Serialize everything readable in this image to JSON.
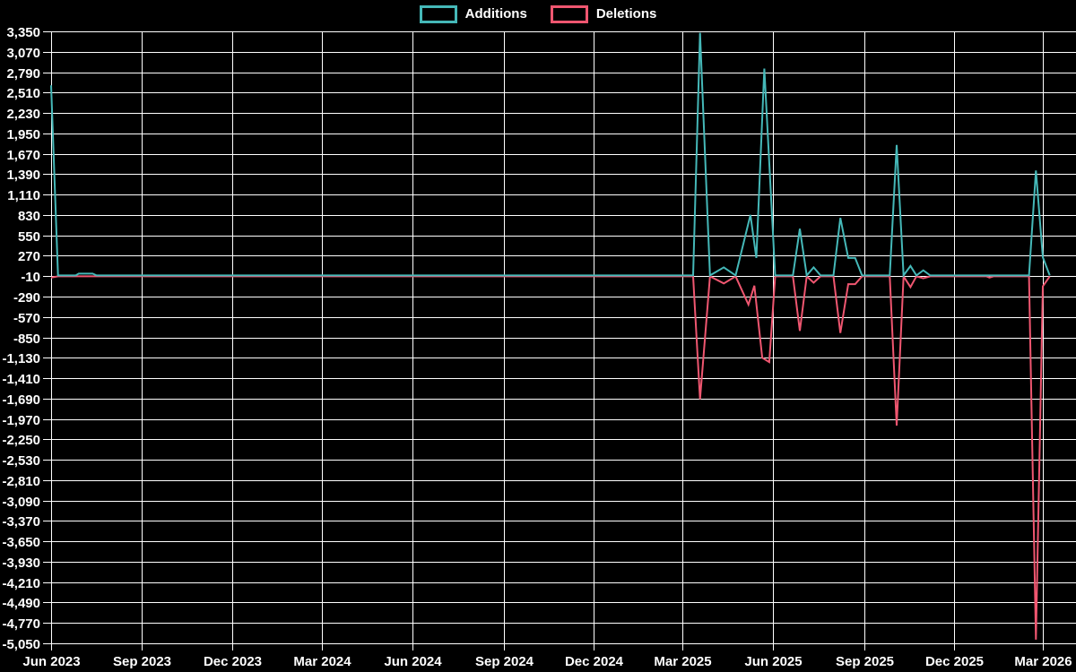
{
  "legend": {
    "items": [
      {
        "label": "Additions",
        "color": "#45b8b8"
      },
      {
        "label": "Deletions",
        "color": "#ef5670"
      }
    ]
  },
  "chart_data": {
    "type": "line",
    "title": "",
    "background_color": "#000000",
    "grid_color": "#ffffff",
    "text_color": "#ffffff",
    "grid": true,
    "legend_position": "top-center",
    "x_axis": {
      "start_date": "2023-06-01",
      "end_date": "2026-03-01",
      "ticks": [
        {
          "label": "Jun 2023",
          "date": "2023-06-01"
        },
        {
          "label": "Sep 2023",
          "date": "2023-09-01"
        },
        {
          "label": "Dec 2023",
          "date": "2023-12-01"
        },
        {
          "label": "Mar 2024",
          "date": "2024-03-01"
        },
        {
          "label": "Jun 2024",
          "date": "2024-06-01"
        },
        {
          "label": "Sep 2024",
          "date": "2024-09-01"
        },
        {
          "label": "Dec 2024",
          "date": "2024-12-01"
        },
        {
          "label": "Mar 2025",
          "date": "2025-03-01"
        },
        {
          "label": "Jun 2025",
          "date": "2025-06-01"
        },
        {
          "label": "Sep 2025",
          "date": "2025-09-01"
        },
        {
          "label": "Dec 2025",
          "date": "2025-12-01"
        },
        {
          "label": "Mar 2026",
          "date": "2026-03-01"
        }
      ]
    },
    "y_axis": {
      "min": -5050,
      "max": 3350,
      "tick_step": 280,
      "tick_labels": [
        "3,350",
        "3,070",
        "2,790",
        "2,510",
        "2,230",
        "1,950",
        "1,670",
        "1,390",
        "1,110",
        "830",
        "550",
        "270",
        "-10",
        "-290",
        "-570",
        "-850",
        "-1,130",
        "-1,410",
        "-1,690",
        "-1,970",
        "-2,250",
        "-2,530",
        "-2,810",
        "-3,090",
        "-3,370",
        "-3,650",
        "-3,930",
        "-4,210",
        "-4,490",
        "-4,770",
        "-5,050"
      ]
    },
    "series": [
      {
        "name": "Additions",
        "color": "#45b8b8",
        "points": [
          [
            "2023-06-01",
            2610
          ],
          [
            "2023-06-08",
            0
          ],
          [
            "2023-06-26",
            0
          ],
          [
            "2023-06-29",
            25
          ],
          [
            "2023-07-13",
            25
          ],
          [
            "2023-07-17",
            0
          ],
          [
            "2025-03-12",
            0
          ],
          [
            "2025-03-19",
            3330
          ],
          [
            "2025-03-29",
            0
          ],
          [
            "2025-04-12",
            110
          ],
          [
            "2025-04-24",
            0
          ],
          [
            "2025-05-09",
            830
          ],
          [
            "2025-05-15",
            240
          ],
          [
            "2025-05-23",
            2840
          ],
          [
            "2025-06-03",
            0
          ],
          [
            "2025-06-21",
            0
          ],
          [
            "2025-06-28",
            640
          ],
          [
            "2025-07-05",
            0
          ],
          [
            "2025-07-12",
            110
          ],
          [
            "2025-07-19",
            0
          ],
          [
            "2025-08-01",
            0
          ],
          [
            "2025-08-08",
            790
          ],
          [
            "2025-08-16",
            240
          ],
          [
            "2025-08-23",
            240
          ],
          [
            "2025-08-30",
            0
          ],
          [
            "2025-09-27",
            0
          ],
          [
            "2025-10-04",
            1790
          ],
          [
            "2025-10-11",
            0
          ],
          [
            "2025-10-18",
            130
          ],
          [
            "2025-10-24",
            0
          ],
          [
            "2025-10-31",
            70
          ],
          [
            "2025-11-07",
            0
          ],
          [
            "2026-02-15",
            0
          ],
          [
            "2026-02-22",
            1440
          ],
          [
            "2026-03-01",
            250
          ],
          [
            "2026-03-08",
            0
          ]
        ]
      },
      {
        "name": "Deletions",
        "color": "#ef5670",
        "points": [
          [
            "2023-06-01",
            -30
          ],
          [
            "2023-06-08",
            -12
          ],
          [
            "2025-03-12",
            -12
          ],
          [
            "2025-03-19",
            -1700
          ],
          [
            "2025-03-29",
            -12
          ],
          [
            "2025-04-12",
            -110
          ],
          [
            "2025-04-24",
            -12
          ],
          [
            "2025-05-07",
            -400
          ],
          [
            "2025-05-13",
            -140
          ],
          [
            "2025-05-21",
            -1130
          ],
          [
            "2025-05-28",
            -1190
          ],
          [
            "2025-06-03",
            -12
          ],
          [
            "2025-06-21",
            -12
          ],
          [
            "2025-06-28",
            -760
          ],
          [
            "2025-07-05",
            -12
          ],
          [
            "2025-07-12",
            -100
          ],
          [
            "2025-07-19",
            -12
          ],
          [
            "2025-08-01",
            -12
          ],
          [
            "2025-08-08",
            -790
          ],
          [
            "2025-08-16",
            -120
          ],
          [
            "2025-08-23",
            -120
          ],
          [
            "2025-08-30",
            -12
          ],
          [
            "2025-09-27",
            -12
          ],
          [
            "2025-10-04",
            -2060
          ],
          [
            "2025-10-11",
            -12
          ],
          [
            "2025-10-18",
            -160
          ],
          [
            "2025-10-24",
            -12
          ],
          [
            "2025-10-31",
            -40
          ],
          [
            "2025-11-07",
            -12
          ],
          [
            "2026-01-03",
            -12
          ],
          [
            "2026-01-06",
            -30
          ],
          [
            "2026-01-10",
            -12
          ],
          [
            "2026-02-15",
            -12
          ],
          [
            "2026-02-22",
            -5000
          ],
          [
            "2026-03-01",
            -150
          ],
          [
            "2026-03-08",
            -12
          ]
        ]
      }
    ]
  }
}
